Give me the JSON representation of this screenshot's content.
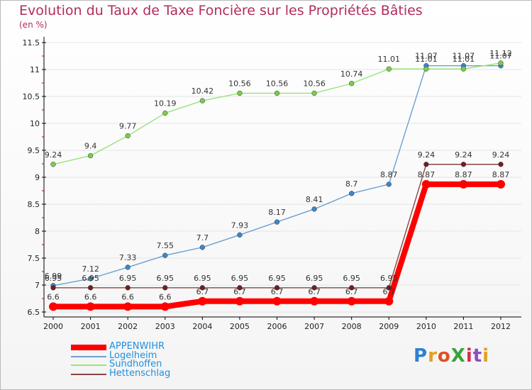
{
  "title": "Evolution du Taux de Taxe Foncière sur les Propriétés Bâties",
  "subtitle": "(en %)",
  "brand": "ProXiti",
  "colors": {
    "title": "#b22b5e",
    "legend_text": "#1f8fdd",
    "axis": "#000000",
    "grid": "#e4e4e4"
  },
  "chart_data": {
    "type": "line",
    "title": "Evolution du Taux de Taxe Foncière sur les Propriétés Bâties",
    "ylabel": "(en %)",
    "xlabel": "",
    "x": [
      "2000",
      "2001",
      "2002",
      "2003",
      "2004",
      "2005",
      "2006",
      "2007",
      "2008",
      "2009",
      "2010",
      "2011",
      "2012"
    ],
    "ylim": [
      6.5,
      11.5
    ],
    "yticks": [
      "6.5",
      "7",
      "7.5",
      "8",
      "8.5",
      "9",
      "9.5",
      "10",
      "10.5",
      "11",
      "11.5"
    ],
    "grid": true,
    "legend_position": "bottom-left",
    "series": [
      {
        "name": "APPENWIHR",
        "color": "#ff0000",
        "marker_color": "#ff0000",
        "values": [
          6.6,
          6.6,
          6.6,
          6.6,
          6.7,
          6.7,
          6.7,
          6.7,
          6.7,
          6.7,
          8.87,
          8.87,
          8.87
        ],
        "labels": [
          "6.6",
          "6.6",
          "6.6",
          "6.6",
          "6.7",
          "6.7",
          "6.7",
          "6.7",
          "6.7",
          "6.7",
          "8.87",
          "8.87",
          "8.87"
        ]
      },
      {
        "name": "Logelheim",
        "color": "#6f9fcf",
        "marker_color": "#3e86c8",
        "values": [
          6.99,
          7.12,
          7.33,
          7.55,
          7.7,
          7.93,
          8.17,
          8.41,
          8.7,
          8.87,
          11.07,
          11.07,
          11.07
        ],
        "labels": [
          "6.99",
          "7.12",
          "7.33",
          "7.55",
          "7.7",
          "7.93",
          "8.17",
          "8.41",
          "8.7",
          "8.87",
          "11.07",
          "11.07",
          "11.07"
        ]
      },
      {
        "name": "Sundhoffen",
        "color": "#99e37a",
        "marker_color": "#7ccc4c",
        "values": [
          9.24,
          9.4,
          9.77,
          10.19,
          10.42,
          10.56,
          10.56,
          10.56,
          10.74,
          11.01,
          11.01,
          11.01,
          11.12
        ],
        "labels": [
          "9.24",
          "9.4",
          "9.77",
          "10.19",
          "10.42",
          "10.56",
          "10.56",
          "10.56",
          "10.74",
          "11.01",
          "11.01",
          "11.01",
          "11.12"
        ]
      },
      {
        "name": "Hettenschlag",
        "color": "#8a4545",
        "marker_color": "#6e1f1f",
        "values": [
          6.95,
          6.95,
          6.95,
          6.95,
          6.95,
          6.95,
          6.95,
          6.95,
          6.95,
          6.95,
          9.24,
          9.24,
          9.24
        ],
        "labels": [
          "6.95",
          "6.95",
          "6.95",
          "6.95",
          "6.95",
          "6.95",
          "6.95",
          "6.95",
          "6.95",
          "6.95",
          "9.24",
          "9.24",
          "9.24"
        ]
      }
    ]
  },
  "legend": [
    {
      "label": "APPENWIHR"
    },
    {
      "label": "Logelheim"
    },
    {
      "label": "Sundhoffen"
    },
    {
      "label": "Hettenschlag"
    }
  ]
}
